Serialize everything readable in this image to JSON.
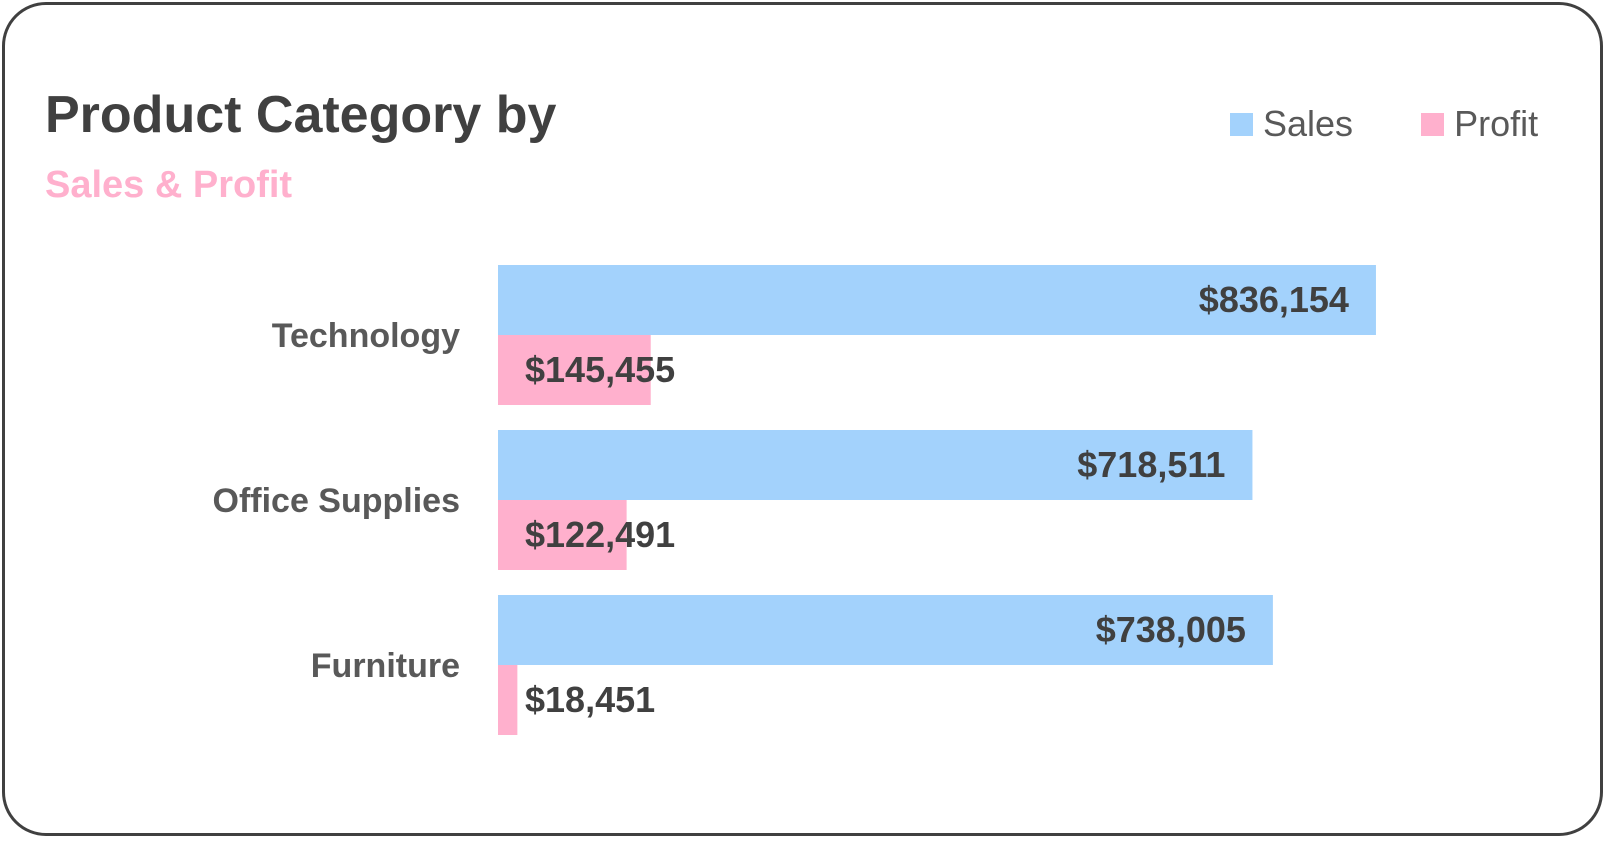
{
  "colors": {
    "sales": "#a3d2fc",
    "profit": "#ffb0cd",
    "title": "#404040",
    "subtitle": "#ffb0cd"
  },
  "legend": {
    "sales_label": "Sales",
    "profit_label": "Profit"
  },
  "chart_data": {
    "type": "bar",
    "orientation": "horizontal",
    "title": "Product Category by",
    "subtitle": "Sales & Profit",
    "categories": [
      "Technology",
      "Office Supplies",
      "Furniture"
    ],
    "series": [
      {
        "name": "Sales",
        "values": [
          836154,
          718511,
          738005
        ],
        "labels": [
          "$836,154",
          "$718,511",
          "$738,005"
        ]
      },
      {
        "name": "Profit",
        "values": [
          145455,
          122491,
          18451
        ],
        "labels": [
          "$145,455",
          "$122,491",
          "$18,451"
        ]
      }
    ],
    "xlim": [
      0,
      1000000
    ],
    "grid": false,
    "legend_position": "top-right"
  }
}
